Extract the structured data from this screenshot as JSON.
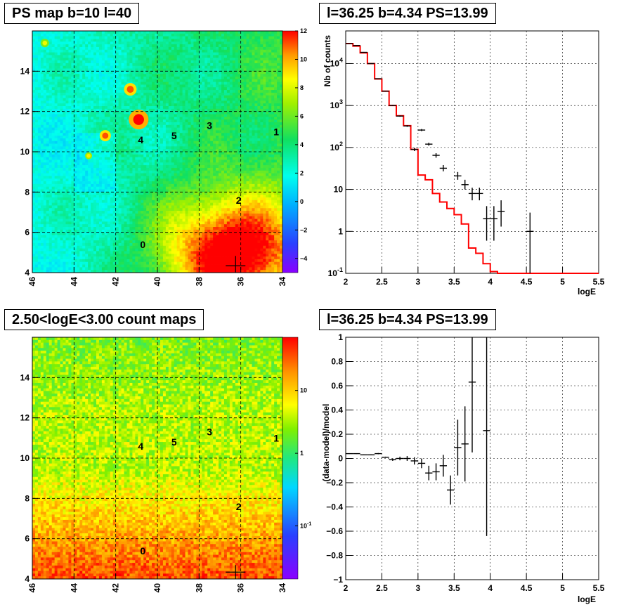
{
  "titles": {
    "map_top": "PS map b=10 l=40",
    "spec_top": "l=36.25 b=4.34 PS=13.99",
    "map_bottom": "2.50<logE<3.00 count maps",
    "spec_bottom": "l=36.25 b=4.34 PS=13.99"
  },
  "chart_data": [
    {
      "type": "heatmap",
      "title": "PS map b=10 l=40",
      "x_ticks": [
        "46",
        "44",
        "42",
        "40",
        "38",
        "36",
        "34"
      ],
      "y_ticks": [
        "4",
        "6",
        "8",
        "10",
        "12",
        "14"
      ],
      "xlim": [
        46,
        34
      ],
      "ylim": [
        4,
        16
      ],
      "zlim": [
        -5,
        12
      ],
      "z_ticks": [
        "12",
        "10",
        "8",
        "6",
        "4",
        "2",
        "0",
        "−2",
        "−4"
      ],
      "colors": {
        "low": "#8a00ff",
        "mid": "#00ffee",
        "high": "#ff0000"
      },
      "sources": [
        {
          "label": "0",
          "l": 40.7,
          "b": 5.4
        },
        {
          "label": "1",
          "l": 34.3,
          "b": 11.0
        },
        {
          "label": "2",
          "l": 36.1,
          "b": 7.6
        },
        {
          "label": "3",
          "l": 37.5,
          "b": 11.3
        },
        {
          "label": "4",
          "l": 40.8,
          "b": 10.6
        },
        {
          "label": "5",
          "l": 39.2,
          "b": 10.8
        }
      ],
      "marked_position": {
        "l": 36.25,
        "b": 4.34
      }
    },
    {
      "type": "line",
      "title": "l=36.25 b=4.34 PS=13.99",
      "xlabel": "logE",
      "ylabel": "Nb of counts",
      "y_scale": "log",
      "xlim": [
        2,
        5.5
      ],
      "ylim": [
        0.1,
        60000
      ],
      "x_ticks": [
        "2",
        "2.5",
        "3",
        "3.5",
        "4",
        "4.5",
        "5",
        "5.5"
      ],
      "y_ticks": [
        "10^{-1}",
        "1",
        "10",
        "10^{2}",
        "10^{3}",
        "10^{4}"
      ],
      "grid": true,
      "model_edges": [
        2.0,
        2.1,
        2.2,
        2.3,
        2.4,
        2.5,
        2.6,
        2.7,
        2.8,
        2.9,
        3.0,
        3.1,
        3.2,
        3.3,
        3.4,
        3.5,
        3.6,
        3.7,
        3.8,
        3.9,
        4.0,
        4.1,
        4.2,
        4.3,
        4.4,
        4.5,
        4.6,
        4.7,
        4.8,
        4.9,
        5.0,
        5.1,
        5.2,
        5.3,
        5.4,
        5.5
      ],
      "model_values": [
        30000,
        26000,
        18000,
        10000,
        4300,
        2200,
        1000,
        570,
        330,
        90,
        22,
        17,
        8,
        5,
        3.5,
        2.5,
        1.5,
        0.4,
        0.3,
        0.17,
        0.11,
        0.1,
        0.1,
        0.1,
        0.1,
        0.1,
        0.1,
        0.1,
        0.1,
        0.1,
        0.1,
        0.1,
        0.1,
        0.1,
        0.1
      ],
      "data_points": [
        {
          "x": 2.05,
          "y": 30000,
          "ylo": 29500,
          "yhi": 30500
        },
        {
          "x": 2.15,
          "y": 27000,
          "ylo": 26500,
          "yhi": 27500
        },
        {
          "x": 2.25,
          "y": 18500,
          "ylo": 18100,
          "yhi": 18900
        },
        {
          "x": 2.35,
          "y": 10000,
          "ylo": 9800,
          "yhi": 10200
        },
        {
          "x": 2.45,
          "y": 4350,
          "ylo": 4280,
          "yhi": 4420
        },
        {
          "x": 2.55,
          "y": 2200,
          "ylo": 2150,
          "yhi": 2250
        },
        {
          "x": 2.65,
          "y": 1000,
          "ylo": 970,
          "yhi": 1030
        },
        {
          "x": 2.75,
          "y": 560,
          "ylo": 540,
          "yhi": 580
        },
        {
          "x": 2.85,
          "y": 325,
          "ylo": 310,
          "yhi": 340
        },
        {
          "x": 2.95,
          "y": 90,
          "ylo": 82,
          "yhi": 98
        },
        {
          "x": 3.05,
          "y": 260,
          "ylo": 245,
          "yhi": 275
        },
        {
          "x": 3.15,
          "y": 120,
          "ylo": 110,
          "yhi": 130
        },
        {
          "x": 3.25,
          "y": 65,
          "ylo": 57,
          "yhi": 73
        },
        {
          "x": 3.35,
          "y": 32,
          "ylo": 27,
          "yhi": 38
        },
        {
          "x": 3.55,
          "y": 21,
          "ylo": 17,
          "yhi": 26
        },
        {
          "x": 3.65,
          "y": 13,
          "ylo": 10,
          "yhi": 17
        },
        {
          "x": 3.75,
          "y": 8,
          "ylo": 5.5,
          "yhi": 11
        },
        {
          "x": 3.85,
          "y": 8,
          "ylo": 5.5,
          "yhi": 11
        },
        {
          "x": 3.95,
          "y": 2,
          "ylo": 0.6,
          "yhi": 4
        },
        {
          "x": 4.05,
          "y": 2,
          "ylo": 0.6,
          "yhi": 4
        },
        {
          "x": 4.15,
          "y": 3,
          "ylo": 1.3,
          "yhi": 5.5
        },
        {
          "x": 4.55,
          "y": 1,
          "ylo": 0.1,
          "yhi": 2.8
        }
      ],
      "colors": {
        "model": "#ff0000",
        "data": "#000000"
      }
    },
    {
      "type": "heatmap",
      "title": "2.50<logE<3.00 count maps",
      "x_ticks": [
        "46",
        "44",
        "42",
        "40",
        "38",
        "36",
        "34"
      ],
      "y_ticks": [
        "4",
        "6",
        "8",
        "10",
        "12",
        "14"
      ],
      "xlim": [
        46,
        34
      ],
      "ylim": [
        4,
        16
      ],
      "z_scale": "log",
      "z_ticks": [
        "10",
        "1",
        "10^{-1}"
      ],
      "colors": {
        "low": "#8a00ff",
        "mid": "#ffff00",
        "high": "#ff0000"
      },
      "sources": [
        {
          "label": "0",
          "l": 40.7,
          "b": 5.4
        },
        {
          "label": "1",
          "l": 34.3,
          "b": 11.0
        },
        {
          "label": "2",
          "l": 36.1,
          "b": 7.6
        },
        {
          "label": "3",
          "l": 37.5,
          "b": 11.3
        },
        {
          "label": "4",
          "l": 40.8,
          "b": 10.6
        },
        {
          "label": "5",
          "l": 39.2,
          "b": 10.8
        }
      ]
    },
    {
      "type": "scatter",
      "title": "l=36.25 b=4.34 PS=13.99",
      "xlabel": "logE",
      "ylabel": "(data-model)/model",
      "xlim": [
        2,
        5.5
      ],
      "ylim": [
        -1,
        1
      ],
      "x_ticks": [
        "2",
        "2.5",
        "3",
        "3.5",
        "4",
        "4.5",
        "5",
        "5.5"
      ],
      "y_ticks": [
        "−1",
        "−0.8",
        "−0.6",
        "−0.4",
        "−0.2",
        "0",
        "0.2",
        "0.4",
        "0.6",
        "0.8",
        "1"
      ],
      "grid": true,
      "data_points": [
        {
          "x": 2.05,
          "y": 0.04,
          "err": 0.003
        },
        {
          "x": 2.15,
          "y": 0.04,
          "err": 0.003
        },
        {
          "x": 2.25,
          "y": 0.03,
          "err": 0.003
        },
        {
          "x": 2.35,
          "y": 0.03,
          "err": 0.004
        },
        {
          "x": 2.45,
          "y": 0.04,
          "err": 0.005
        },
        {
          "x": 2.55,
          "y": 0.01,
          "err": 0.005
        },
        {
          "x": 2.65,
          "y": -0.01,
          "err": 0.01
        },
        {
          "x": 2.75,
          "y": 0.0,
          "err": 0.015
        },
        {
          "x": 2.85,
          "y": 0.0,
          "err": 0.02
        },
        {
          "x": 2.95,
          "y": -0.02,
          "err": 0.03
        },
        {
          "x": 3.05,
          "y": -0.04,
          "err": 0.04
        },
        {
          "x": 3.15,
          "y": -0.12,
          "err": 0.06
        },
        {
          "x": 3.25,
          "y": -0.11,
          "err": 0.07
        },
        {
          "x": 3.35,
          "y": -0.06,
          "err": 0.09
        },
        {
          "x": 3.45,
          "y": -0.26,
          "err": 0.12
        },
        {
          "x": 3.55,
          "y": 0.09,
          "err": 0.23
        },
        {
          "x": 3.65,
          "y": 0.12,
          "err": 0.31
        },
        {
          "x": 3.75,
          "y": 0.63,
          "err": 0.58
        },
        {
          "x": 3.95,
          "y": 0.23,
          "err": 0.87
        }
      ]
    }
  ]
}
